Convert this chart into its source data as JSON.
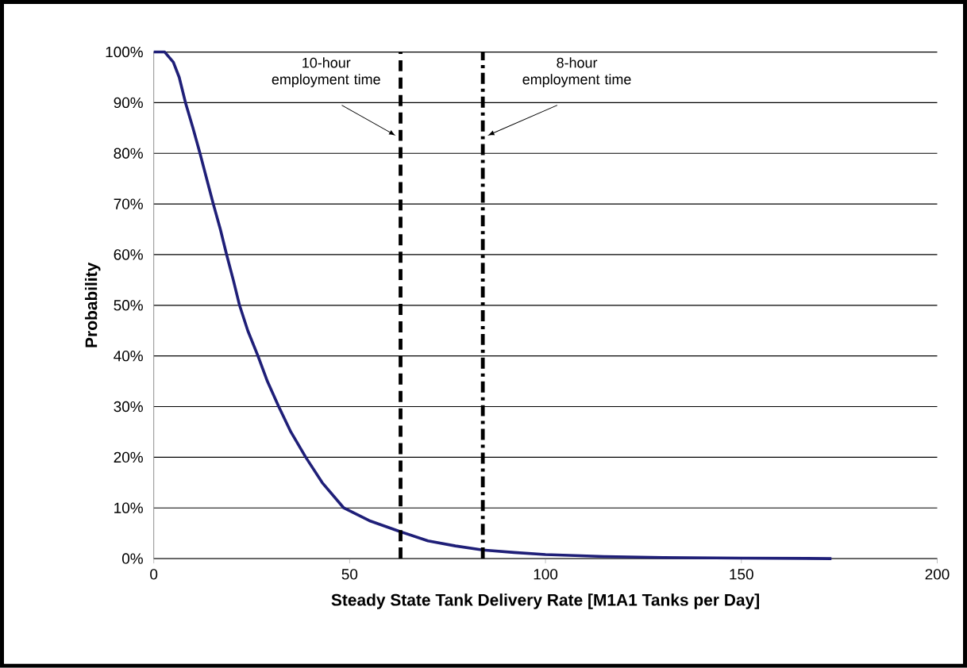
{
  "chart_data": {
    "type": "line",
    "xlabel": "Steady State Tank Delivery Rate [M1A1 Tanks per Day]",
    "ylabel": "Probability",
    "x": [
      0,
      2.8,
      5,
      6.5,
      8.1,
      10,
      11.8,
      13.5,
      15.2,
      17,
      18.6,
      20.3,
      21.9,
      24,
      26.6,
      29,
      31.9,
      35,
      38.8,
      43,
      48.5,
      55,
      63,
      70,
      77,
      84,
      92,
      100,
      115,
      130,
      150,
      173
    ],
    "series": [
      {
        "color": "#1f1f78",
        "values": [
          100,
          100,
          98,
          95,
          90,
          85,
          80,
          75,
          70,
          65,
          60,
          55,
          50,
          45,
          40,
          35,
          30,
          25,
          20,
          15,
          10,
          7.5,
          5.3,
          3.5,
          2.5,
          1.7,
          1.2,
          0.8,
          0.4,
          0.2,
          0.1,
          0
        ]
      }
    ],
    "xlim": [
      0,
      200
    ],
    "xticks": [
      0,
      50,
      100,
      150,
      200
    ],
    "ylim": [
      0,
      100
    ],
    "yticks": [
      {
        "value": 0,
        "label": "0%"
      },
      {
        "value": 10,
        "label": "10%"
      },
      {
        "value": 20,
        "label": "20%"
      },
      {
        "value": 30,
        "label": "30%"
      },
      {
        "value": 40,
        "label": "40%"
      },
      {
        "value": 50,
        "label": "50%"
      },
      {
        "value": 60,
        "label": "60%"
      },
      {
        "value": 70,
        "label": "70%"
      },
      {
        "value": 80,
        "label": "80%"
      },
      {
        "value": 90,
        "label": "90%"
      },
      {
        "value": 100,
        "label": "100%"
      }
    ],
    "grid": "y",
    "marker": "none",
    "line_style": "solid",
    "ref_lines": [
      {
        "axis": "x",
        "value": 63,
        "label": "10-hour employment time",
        "color": "#000000",
        "line_style": "dashed"
      },
      {
        "axis": "x",
        "value": 84,
        "label": "8-hour employment time",
        "color": "#000000",
        "line_style": "dashdot"
      }
    ]
  }
}
